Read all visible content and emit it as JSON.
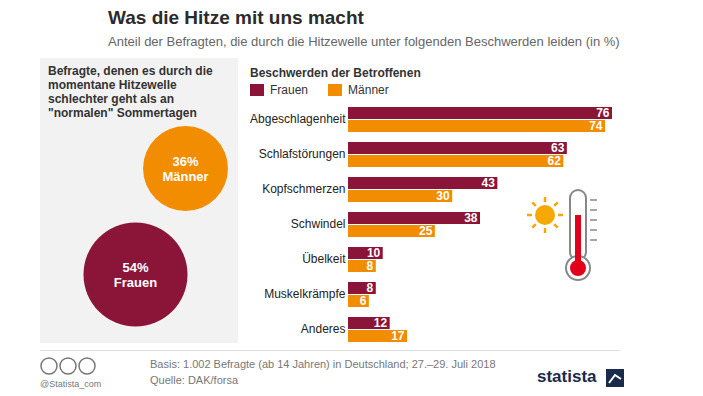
{
  "title": "Was die Hitze mit uns macht",
  "subtitle": "Anteil der Befragten, die durch die Hitzewelle unter folgenden Beschwerden leiden (in %)",
  "footer": {
    "note": "Basis: 1.002 Befragte (ab 14 Jahren) in Deutschland; 27.–29. Juli 2018",
    "source": "Quelle: DAK/forsa",
    "handle": "@Statista_com",
    "brand": "statista"
  },
  "chart_data": [
    {
      "type": "bubble",
      "title": "Befragte, denen es durch die momentane Hitzewelle schlechter geht als an \"normalen\" Sommertagen",
      "categories": [
        "Frauen",
        "Männer"
      ],
      "values": [
        54,
        36
      ],
      "value_labels": [
        "54%",
        "36%"
      ],
      "colors": [
        "#8b1538",
        "#f28c00"
      ],
      "data_labels": true,
      "tick_labels": false
    },
    {
      "type": "bar",
      "orientation": "horizontal",
      "title": "Beschwerden der Betroffenen",
      "categories": [
        "Abgeschlagenheit",
        "Schlafstörungen",
        "Kopfschmerzen",
        "Schwindel",
        "Übelkeit",
        "Muskelkrämpfe",
        "Anderes"
      ],
      "series": [
        {
          "name": "Frauen",
          "color": "#8b1538",
          "values": [
            76,
            63,
            43,
            38,
            10,
            8,
            12
          ]
        },
        {
          "name": "Männer",
          "color": "#f28c00",
          "values": [
            74,
            62,
            30,
            25,
            8,
            6,
            17
          ]
        }
      ],
      "xlim": [
        0,
        76
      ],
      "data_labels": true,
      "tick_labels": "y",
      "legend": "top-left"
    }
  ]
}
